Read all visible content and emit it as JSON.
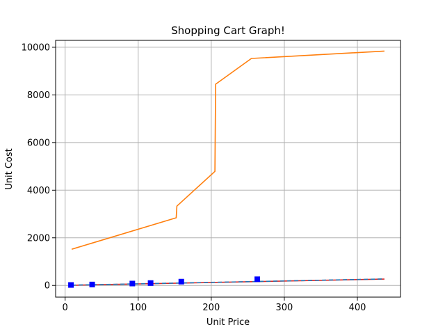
{
  "chart_data": {
    "type": "line",
    "title": "Shopping Cart Graph!",
    "xlabel": "Unit Price",
    "ylabel": "Unit Cost",
    "xlim": [
      -13,
      459
    ],
    "ylim": [
      -490,
      10290
    ],
    "grid": true,
    "x_ticks": [
      {
        "value": 0,
        "label": "0"
      },
      {
        "value": 100,
        "label": "100"
      },
      {
        "value": 200,
        "label": "200"
      },
      {
        "value": 300,
        "label": "300"
      },
      {
        "value": 400,
        "label": "400"
      }
    ],
    "y_ticks": [
      {
        "value": 0,
        "label": "0"
      },
      {
        "value": 2000,
        "label": "2000"
      },
      {
        "value": 4000,
        "label": "4000"
      },
      {
        "value": 6000,
        "label": "6000"
      },
      {
        "value": 8000,
        "label": "8000"
      },
      {
        "value": 10000,
        "label": "10000"
      }
    ],
    "series": [
      {
        "color": "#ff7f0e",
        "style": "solid",
        "marker": "none",
        "points": [
          [
            9,
            1520
          ],
          [
            152,
            2840
          ],
          [
            153,
            3330
          ],
          [
            205,
            4790
          ],
          [
            206,
            8450
          ],
          [
            255,
            9530
          ],
          [
            437,
            9840
          ]
        ]
      },
      {
        "color": "#d62728",
        "style": "solid",
        "marker": "none",
        "points": [
          [
            9,
            10
          ],
          [
            437,
            268
          ]
        ]
      },
      {
        "color": "#1f77b4",
        "style": "dashed",
        "marker": "none",
        "points": [
          [
            9,
            12
          ],
          [
            437,
            272
          ]
        ]
      },
      {
        "color": "#0000ff",
        "style": "none",
        "marker": "square",
        "points": [
          [
            8,
            20
          ],
          [
            37,
            40
          ],
          [
            92,
            80
          ],
          [
            117,
            100
          ],
          [
            159,
            160
          ],
          [
            263,
            260
          ]
        ]
      }
    ]
  }
}
